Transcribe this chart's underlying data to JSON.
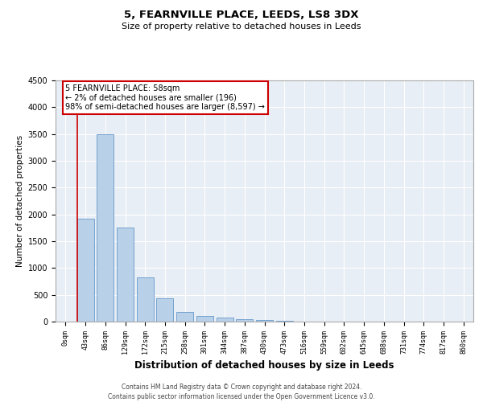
{
  "title1": "5, FEARNVILLE PLACE, LEEDS, LS8 3DX",
  "title2": "Size of property relative to detached houses in Leeds",
  "xlabel": "Distribution of detached houses by size in Leeds",
  "ylabel": "Number of detached properties",
  "bar_labels": [
    "0sqm",
    "43sqm",
    "86sqm",
    "129sqm",
    "172sqm",
    "215sqm",
    "258sqm",
    "301sqm",
    "344sqm",
    "387sqm",
    "430sqm",
    "473sqm",
    "516sqm",
    "559sqm",
    "602sqm",
    "645sqm",
    "688sqm",
    "731sqm",
    "774sqm",
    "817sqm",
    "860sqm"
  ],
  "bar_values": [
    5,
    1920,
    3490,
    1760,
    820,
    430,
    175,
    100,
    75,
    50,
    30,
    15,
    5,
    2,
    1,
    0,
    0,
    0,
    0,
    0,
    0
  ],
  "bar_color": "#b8d0e8",
  "bar_edge_color": "#6699cc",
  "ylim": [
    0,
    4500
  ],
  "yticks": [
    0,
    500,
    1000,
    1500,
    2000,
    2500,
    3000,
    3500,
    4000,
    4500
  ],
  "property_line_color": "#cc0000",
  "annotation_line1": "5 FEARNVILLE PLACE: 58sqm",
  "annotation_line2": "← 2% of detached houses are smaller (196)",
  "annotation_line3": "98% of semi-detached houses are larger (8,597) →",
  "annotation_box_color": "#cc0000",
  "footer1": "Contains HM Land Registry data © Crown copyright and database right 2024.",
  "footer2": "Contains public sector information licensed under the Open Government Licence v3.0.",
  "plot_bg_color": "#e8eef5"
}
